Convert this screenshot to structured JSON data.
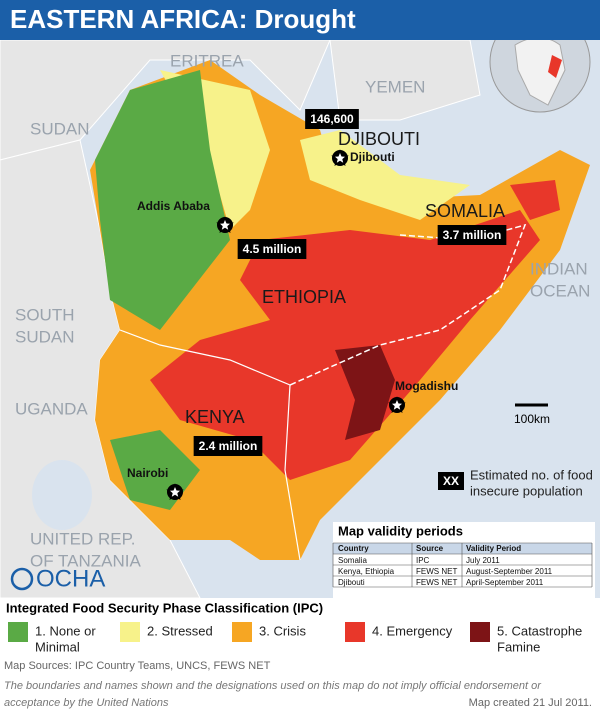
{
  "header": {
    "title": "EASTERN AFRICA: Drought"
  },
  "map": {
    "countries": [
      {
        "lines": [
          "ERITREA"
        ]
      },
      {
        "lines": [
          "YEMEN"
        ]
      },
      {
        "lines": [
          "SUDAN"
        ]
      },
      {
        "lines": [
          "DJIBOUTI"
        ]
      },
      {
        "lines": [
          "SOMALIA"
        ]
      },
      {
        "lines": [
          "ETHIOPIA"
        ]
      },
      {
        "lines": [
          "SOUTH",
          "SUDAN"
        ]
      },
      {
        "lines": [
          "UGANDA"
        ]
      },
      {
        "lines": [
          "KENYA"
        ]
      },
      {
        "lines": [
          "UNITED REP.",
          "OF TANZANIA"
        ]
      },
      {
        "lines": [
          "INDIAN",
          "OCEAN"
        ]
      }
    ],
    "cities": [
      "Addis Ababa",
      "Djibouti",
      "Mogadishu",
      "Nairobi"
    ],
    "populations": [
      "146,600",
      "4.5 million",
      "3.7 million",
      "2.4 million"
    ],
    "scale": "100km",
    "key": {
      "symbol": "XX",
      "lines": [
        "Estimated no. of food",
        "insecure population"
      ]
    },
    "logo": "OCHA"
  },
  "table": {
    "title": "Map validity periods",
    "header": [
      "Country",
      "Source",
      "Validity Period"
    ],
    "rows": [
      [
        "Somalia",
        "IPC",
        "July 2011"
      ],
      [
        "Kenya, Ethiopia",
        "FEWS NET",
        "August-September 2011"
      ],
      [
        "Djibouti",
        "FEWS NET",
        "April-September 2011"
      ]
    ]
  },
  "legend": {
    "title": "Integrated Food Security Phase Classification (IPC)",
    "items": [
      {
        "lines": [
          "1. None or",
          "Minimal"
        ],
        "color": "#5aaa45"
      },
      {
        "lines": [
          "2. Stressed"
        ],
        "color": "#f7f28a"
      },
      {
        "lines": [
          "3. Crisis"
        ],
        "color": "#f6a623"
      },
      {
        "lines": [
          "4. Emergency"
        ],
        "color": "#e8372a"
      },
      {
        "lines": [
          "5. Catastrophe",
          "Famine"
        ],
        "color": "#7d1416"
      }
    ]
  },
  "footer": {
    "sources": "Map Sources: IPC Country Teams, UNCS, FEWS NET",
    "disclaimer": [
      "The boundaries and names shown and the designations used on this map do not imply official endorsement  or",
      "acceptance by the United Nations"
    ],
    "created": "Map created 21 Jul 2011."
  }
}
